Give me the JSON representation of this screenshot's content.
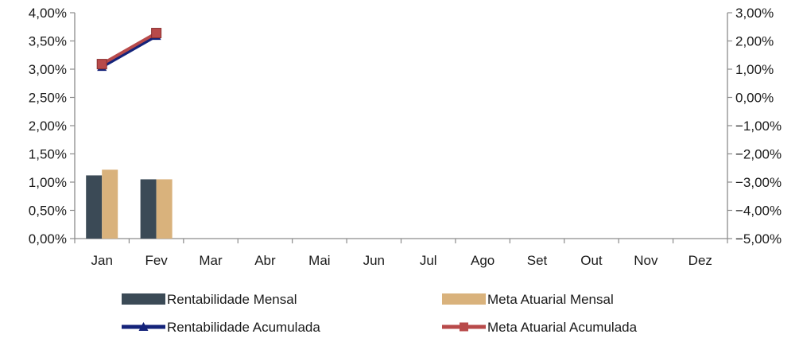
{
  "chart_data": {
    "type": "bar",
    "categories": [
      "Jan",
      "Fev",
      "Mar",
      "Abr",
      "Mai",
      "Jun",
      "Jul",
      "Ago",
      "Set",
      "Out",
      "Nov",
      "Dez"
    ],
    "bar_series": [
      {
        "name": "Rentabilidade Mensal",
        "color": "#3b4a56",
        "axis": "left",
        "values": [
          1.12,
          1.05,
          null,
          null,
          null,
          null,
          null,
          null,
          null,
          null,
          null,
          null
        ]
      },
      {
        "name": "Meta Atuarial Mensal",
        "color": "#d9b27c",
        "axis": "left",
        "values": [
          1.22,
          1.05,
          null,
          null,
          null,
          null,
          null,
          null,
          null,
          null,
          null,
          null
        ]
      }
    ],
    "line_series": [
      {
        "name": "Rentabilidade Acumulada",
        "color": "#14237a",
        "marker": "triangle",
        "axis": "right",
        "values": [
          1.08,
          2.18,
          null,
          null,
          null,
          null,
          null,
          null,
          null,
          null,
          null,
          null
        ]
      },
      {
        "name": "Meta Atuarial Acumulada",
        "color": "#b84a4a",
        "marker": "square",
        "axis": "right",
        "values": [
          1.18,
          2.28,
          null,
          null,
          null,
          null,
          null,
          null,
          null,
          null,
          null,
          null
        ]
      }
    ],
    "y_left": {
      "min": 0,
      "max": 4,
      "step": 0.5,
      "format": "percent_comma_2"
    },
    "y_right": {
      "min": -5,
      "max": 3,
      "step": 1,
      "format": "percent_comma_2"
    },
    "legend": {
      "position": "bottom",
      "items": [
        {
          "label": "Rentabilidade Mensal",
          "kind": "bar",
          "color": "#3b4a56"
        },
        {
          "label": "Meta Atuarial Mensal",
          "kind": "bar",
          "color": "#d9b27c"
        },
        {
          "label": "Rentabilidade Acumulada",
          "kind": "line",
          "marker": "triangle",
          "color": "#14237a"
        },
        {
          "label": "Meta Atuarial Acumulada",
          "kind": "line",
          "marker": "square",
          "color": "#b84a4a"
        }
      ]
    }
  }
}
